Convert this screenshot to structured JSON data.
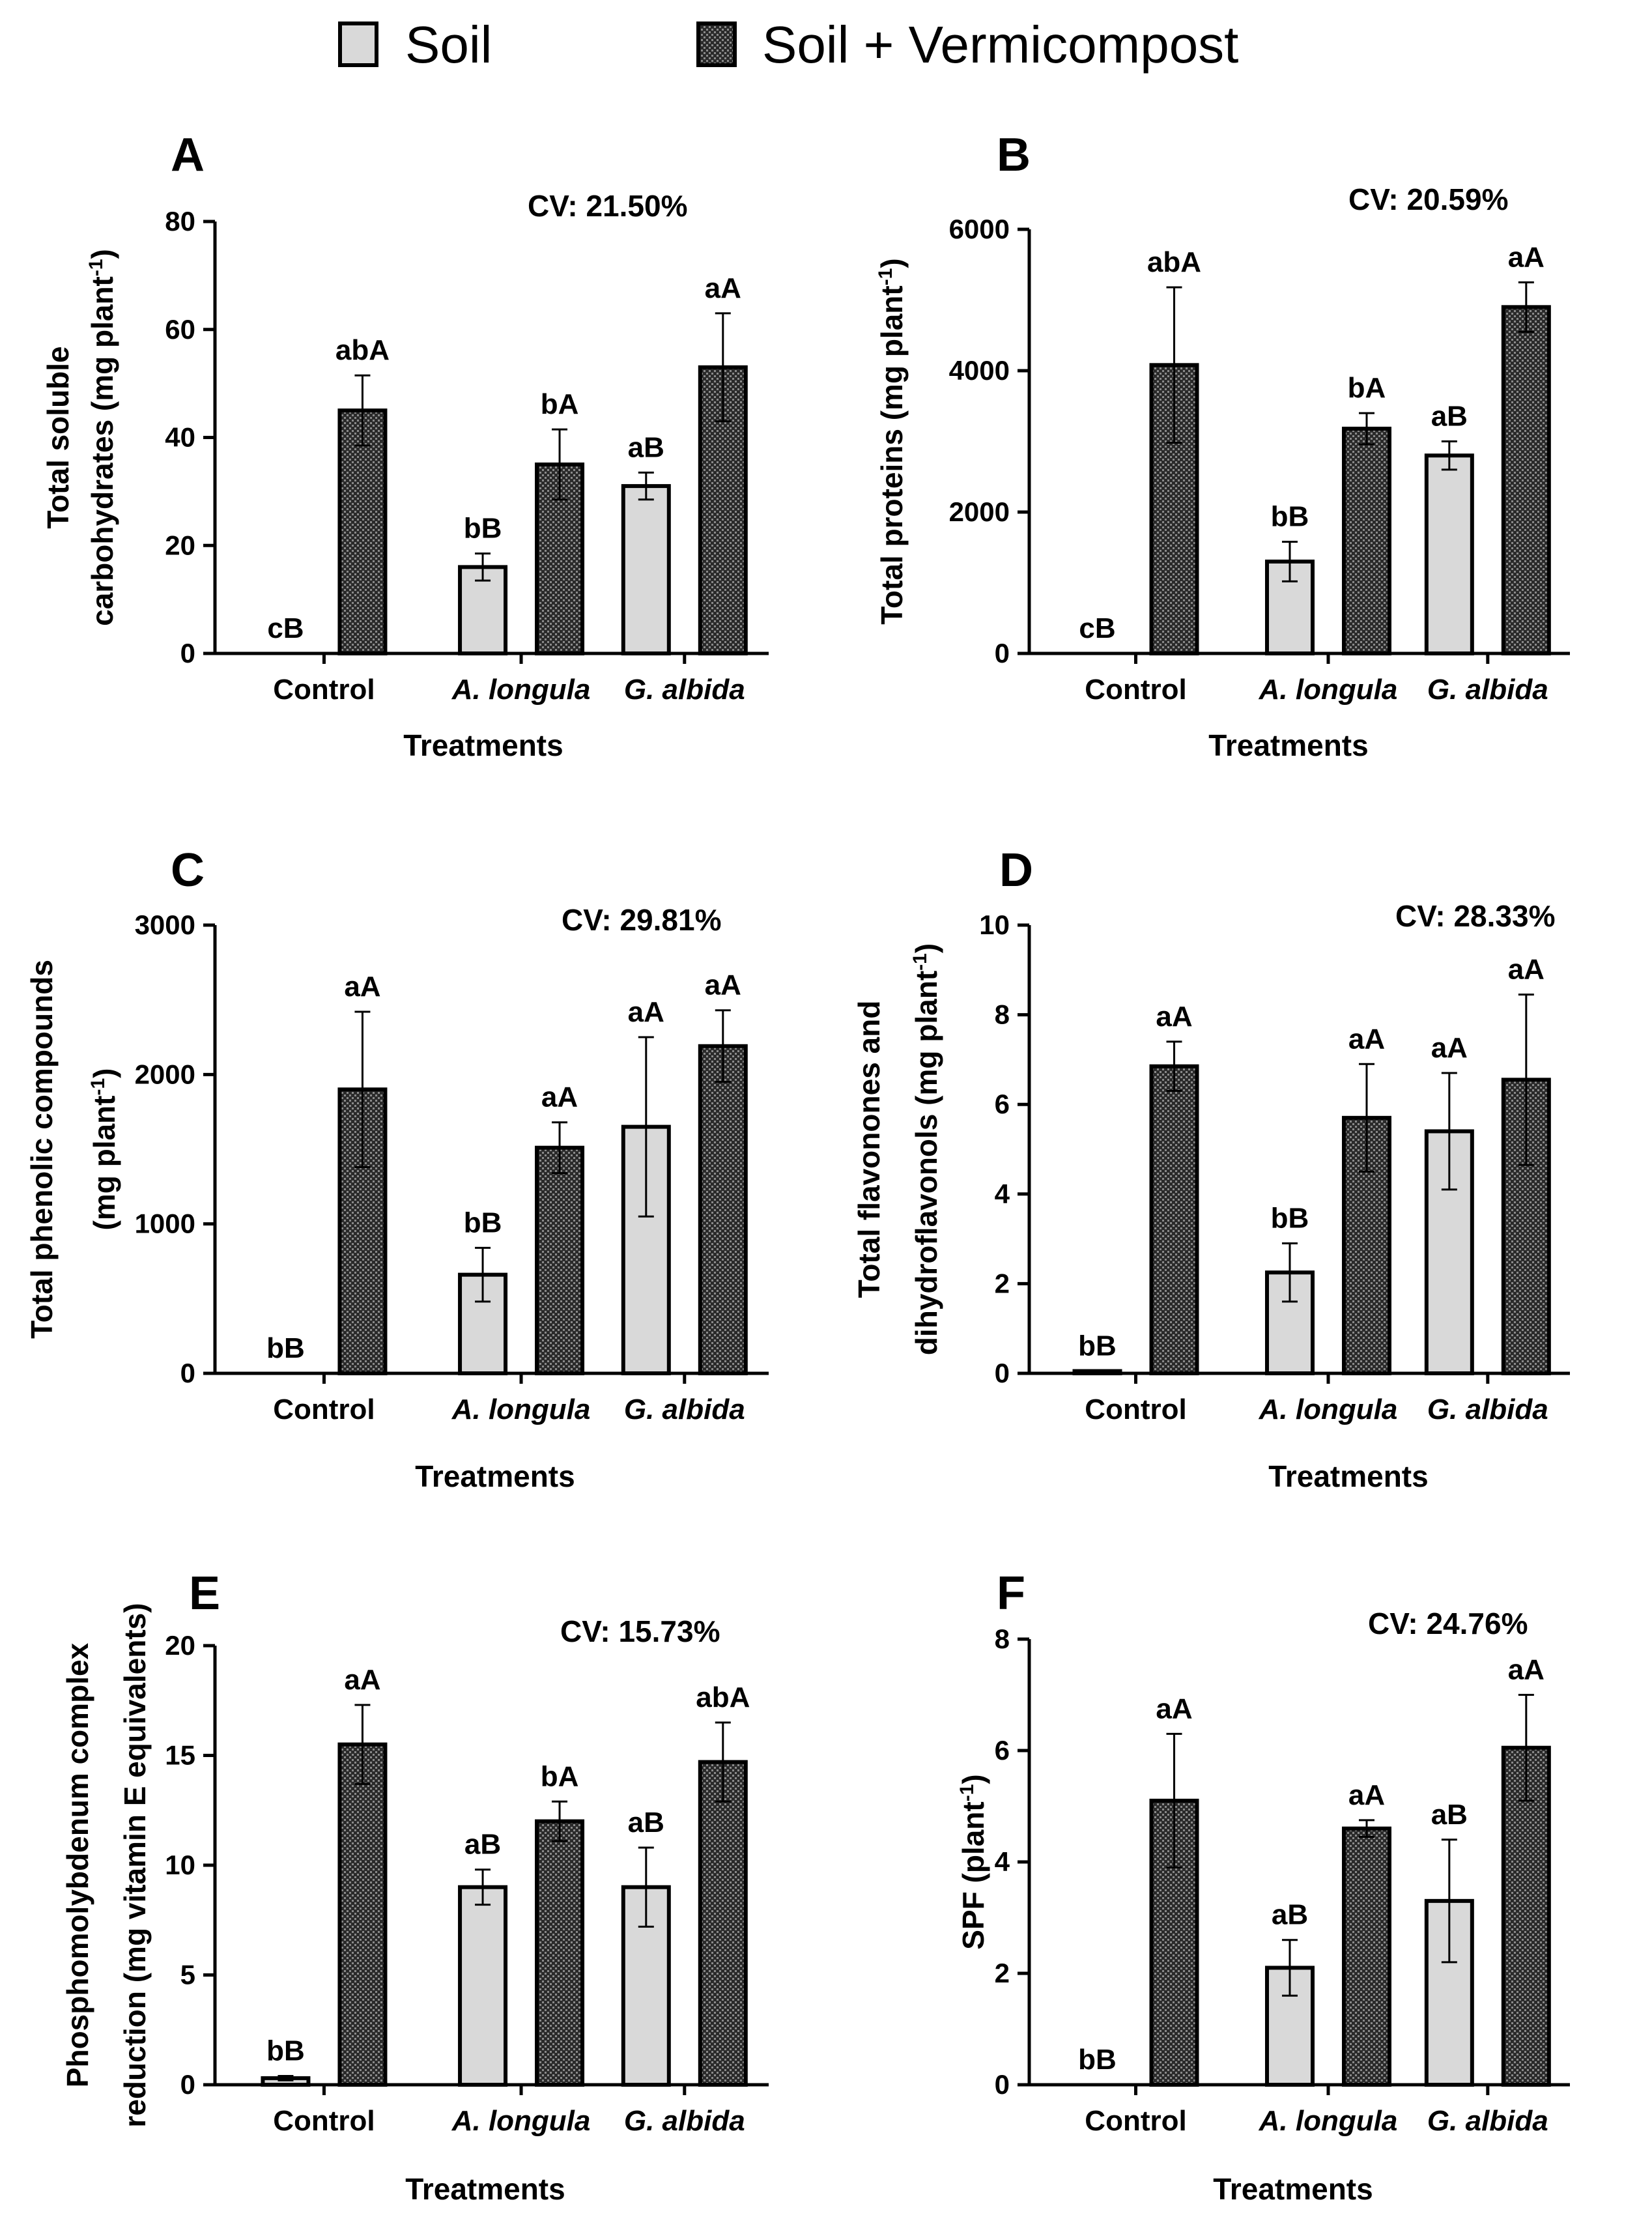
{
  "legend": {
    "soil": "Soil",
    "soil_vermicompost": "Soil + Vermicompost"
  },
  "colors": {
    "soil_fill": "#d9d9d9",
    "vermi_fill": "#2a2a2a",
    "vermi_pattern_light": "#8a8a8a",
    "stroke": "#000000"
  },
  "chart_data": [
    {
      "panel": "A",
      "type": "bar",
      "cv": "CV: 21.50%",
      "ylabel_lines": [
        "Total soluble",
        "carbohydrates (mg plant-1)"
      ],
      "xlabel": "Treatments",
      "categories": [
        "Control",
        "A. longula",
        "G. albida"
      ],
      "ylim": [
        0,
        80
      ],
      "yticks": [
        0,
        20,
        40,
        60,
        80
      ],
      "series": [
        {
          "name": "Soil",
          "values": [
            0,
            16,
            31
          ],
          "errors": [
            0,
            2.5,
            2.5
          ],
          "labels": [
            "cB",
            "bB",
            "aB"
          ]
        },
        {
          "name": "Soil + Vermicompost",
          "values": [
            45,
            35,
            53
          ],
          "errors": [
            6.5,
            6.5,
            10
          ],
          "labels": [
            "abA",
            "bA",
            "aA"
          ]
        }
      ]
    },
    {
      "panel": "B",
      "type": "bar",
      "cv": "CV: 20.59%",
      "ylabel_lines": [
        "Total proteins (mg plant-1)"
      ],
      "xlabel": "Treatments",
      "categories": [
        "Control",
        "A. longula",
        "G. albida"
      ],
      "ylim": [
        0,
        6000
      ],
      "yticks": [
        0,
        2000,
        4000,
        6000
      ],
      "series": [
        {
          "name": "Soil",
          "values": [
            0,
            1300,
            2800
          ],
          "errors": [
            0,
            280,
            200
          ],
          "labels": [
            "cB",
            "bB",
            "aB"
          ]
        },
        {
          "name": "Soil + Vermicompost",
          "values": [
            4080,
            3180,
            4900
          ],
          "errors": [
            1100,
            220,
            350
          ],
          "labels": [
            "abA",
            "bA",
            "aA"
          ]
        }
      ]
    },
    {
      "panel": "C",
      "type": "bar",
      "cv": "CV: 29.81%",
      "ylabel_lines": [
        "Total phenolic compounds",
        "(mg plant-1)"
      ],
      "xlabel": "Treatments",
      "categories": [
        "Control",
        "A. longula",
        "G. albida"
      ],
      "ylim": [
        0,
        3000
      ],
      "yticks": [
        0,
        1000,
        2000,
        3000
      ],
      "series": [
        {
          "name": "Soil",
          "values": [
            0,
            660,
            1650
          ],
          "errors": [
            0,
            180,
            600
          ],
          "labels": [
            "bB",
            "bB",
            "aA"
          ]
        },
        {
          "name": "Soil + Vermicompost",
          "values": [
            1900,
            1510,
            2190
          ],
          "errors": [
            520,
            170,
            240
          ],
          "labels": [
            "aA",
            "aA",
            "aA"
          ]
        }
      ]
    },
    {
      "panel": "D",
      "type": "bar",
      "cv": "CV: 28.33%",
      "ylabel_lines": [
        "Total flavonones and",
        "dihydroflavonols (mg plant-1)"
      ],
      "xlabel": "Treatments",
      "categories": [
        "Control",
        "A. longula",
        "G. albida"
      ],
      "ylim": [
        0,
        10
      ],
      "yticks": [
        0,
        2,
        4,
        6,
        8,
        10
      ],
      "series": [
        {
          "name": "Soil",
          "values": [
            0.05,
            2.25,
            5.4
          ],
          "errors": [
            0,
            0.65,
            1.3
          ],
          "labels": [
            "bB",
            "bB",
            "aA"
          ]
        },
        {
          "name": "Soil + Vermicompost",
          "values": [
            6.85,
            5.7,
            6.55
          ],
          "errors": [
            0.55,
            1.2,
            1.9
          ],
          "labels": [
            "aA",
            "aA",
            "aA"
          ]
        }
      ]
    },
    {
      "panel": "E",
      "type": "bar",
      "cv": "CV: 15.73%",
      "ylabel_lines": [
        "Phosphomolybdenum complex",
        "reduction (mg vitamin E equivalents)"
      ],
      "xlabel": "Treatments",
      "categories": [
        "Control",
        "A. longula",
        "G. albida"
      ],
      "ylim": [
        0,
        20
      ],
      "yticks": [
        0,
        5,
        10,
        15,
        20
      ],
      "series": [
        {
          "name": "Soil",
          "values": [
            0.3,
            9.0,
            9.0
          ],
          "errors": [
            0.1,
            0.8,
            1.8
          ],
          "labels": [
            "bB",
            "aB",
            "aB"
          ]
        },
        {
          "name": "Soil + Vermicompost",
          "values": [
            15.5,
            12.0,
            14.7
          ],
          "errors": [
            1.8,
            0.9,
            1.8
          ],
          "labels": [
            "aA",
            "bA",
            "abA"
          ]
        }
      ]
    },
    {
      "panel": "F",
      "type": "bar",
      "cv": "CV: 24.76%",
      "ylabel_lines": [
        "SPF (plant-1)"
      ],
      "xlabel": "Treatments",
      "categories": [
        "Control",
        "A. longula",
        "G. albida"
      ],
      "ylim": [
        0,
        8
      ],
      "yticks": [
        0,
        2,
        4,
        6,
        8
      ],
      "series": [
        {
          "name": "Soil",
          "values": [
            0,
            2.1,
            3.3
          ],
          "errors": [
            0,
            0.5,
            1.1
          ],
          "labels": [
            "bB",
            "aB",
            "aB"
          ]
        },
        {
          "name": "Soil + Vermicompost",
          "values": [
            5.1,
            4.6,
            6.05
          ],
          "errors": [
            1.2,
            0.15,
            0.95
          ],
          "labels": [
            "aA",
            "aA",
            "aA"
          ]
        }
      ]
    }
  ]
}
